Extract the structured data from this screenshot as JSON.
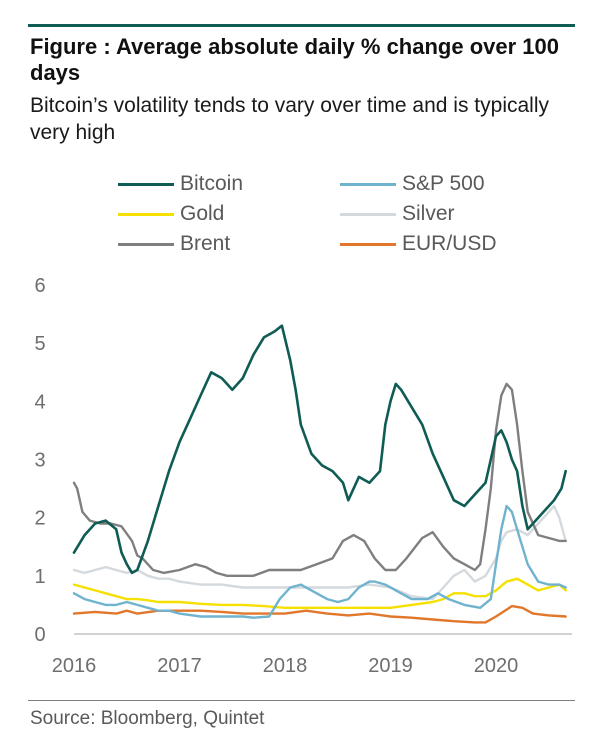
{
  "header": {
    "title": "Figure   : Average absolute daily % change over 100 days",
    "subtitle": "Bitcoin’s volatility tends to vary over time and is typically very high"
  },
  "footer": {
    "source": "Source: Bloomberg, Quintet"
  },
  "colors": {
    "rule": "#0f5c54"
  },
  "chart_data": {
    "type": "line",
    "title": "Figure   : Average absolute daily % change over 100 days",
    "subtitle": "Bitcoin’s volatility tends to vary over time and is typically very high",
    "xlabel": "",
    "ylabel": "",
    "xlim": [
      2016.0,
      2020.72
    ],
    "ylim": [
      0,
      6
    ],
    "x_ticks": [
      "2016",
      "2017",
      "2018",
      "2019",
      "2020"
    ],
    "y_ticks": [
      "0",
      "1",
      "2",
      "3",
      "4",
      "5",
      "6"
    ],
    "grid": false,
    "legend_placement": "top",
    "series": [
      {
        "name": "Bitcoin",
        "color": "#0f5c54",
        "points": [
          [
            2016.0,
            1.4
          ],
          [
            2016.1,
            1.7
          ],
          [
            2016.2,
            1.9
          ],
          [
            2016.3,
            1.95
          ],
          [
            2016.4,
            1.8
          ],
          [
            2016.45,
            1.4
          ],
          [
            2016.5,
            1.2
          ],
          [
            2016.55,
            1.05
          ],
          [
            2016.6,
            1.1
          ],
          [
            2016.7,
            1.6
          ],
          [
            2016.8,
            2.2
          ],
          [
            2016.9,
            2.8
          ],
          [
            2017.0,
            3.3
          ],
          [
            2017.1,
            3.7
          ],
          [
            2017.2,
            4.1
          ],
          [
            2017.3,
            4.5
          ],
          [
            2017.4,
            4.4
          ],
          [
            2017.5,
            4.2
          ],
          [
            2017.6,
            4.4
          ],
          [
            2017.7,
            4.8
          ],
          [
            2017.8,
            5.1
          ],
          [
            2017.9,
            5.2
          ],
          [
            2017.97,
            5.3
          ],
          [
            2018.05,
            4.7
          ],
          [
            2018.1,
            4.2
          ],
          [
            2018.15,
            3.6
          ],
          [
            2018.25,
            3.1
          ],
          [
            2018.35,
            2.9
          ],
          [
            2018.45,
            2.8
          ],
          [
            2018.55,
            2.6
          ],
          [
            2018.6,
            2.3
          ],
          [
            2018.7,
            2.7
          ],
          [
            2018.8,
            2.6
          ],
          [
            2018.9,
            2.8
          ],
          [
            2018.95,
            3.6
          ],
          [
            2019.0,
            4.0
          ],
          [
            2019.05,
            4.3
          ],
          [
            2019.1,
            4.2
          ],
          [
            2019.2,
            3.9
          ],
          [
            2019.3,
            3.6
          ],
          [
            2019.4,
            3.1
          ],
          [
            2019.5,
            2.7
          ],
          [
            2019.6,
            2.3
          ],
          [
            2019.7,
            2.2
          ],
          [
            2019.8,
            2.4
          ],
          [
            2019.9,
            2.6
          ],
          [
            2019.95,
            3.0
          ],
          [
            2020.0,
            3.4
          ],
          [
            2020.05,
            3.5
          ],
          [
            2020.1,
            3.3
          ],
          [
            2020.15,
            3.0
          ],
          [
            2020.2,
            2.8
          ],
          [
            2020.25,
            2.2
          ],
          [
            2020.3,
            1.8
          ],
          [
            2020.35,
            1.9
          ],
          [
            2020.45,
            2.1
          ],
          [
            2020.55,
            2.3
          ],
          [
            2020.62,
            2.5
          ],
          [
            2020.66,
            2.8
          ]
        ]
      },
      {
        "name": "S&P 500",
        "color": "#6fb3cf",
        "points": [
          [
            2016.0,
            0.7
          ],
          [
            2016.1,
            0.6
          ],
          [
            2016.2,
            0.55
          ],
          [
            2016.3,
            0.5
          ],
          [
            2016.4,
            0.5
          ],
          [
            2016.5,
            0.55
          ],
          [
            2016.6,
            0.5
          ],
          [
            2016.7,
            0.45
          ],
          [
            2016.8,
            0.4
          ],
          [
            2016.9,
            0.4
          ],
          [
            2017.0,
            0.35
          ],
          [
            2017.2,
            0.3
          ],
          [
            2017.4,
            0.3
          ],
          [
            2017.6,
            0.3
          ],
          [
            2017.7,
            0.28
          ],
          [
            2017.85,
            0.3
          ],
          [
            2017.95,
            0.6
          ],
          [
            2018.05,
            0.8
          ],
          [
            2018.15,
            0.85
          ],
          [
            2018.3,
            0.7
          ],
          [
            2018.4,
            0.6
          ],
          [
            2018.5,
            0.55
          ],
          [
            2018.6,
            0.6
          ],
          [
            2018.7,
            0.8
          ],
          [
            2018.8,
            0.9
          ],
          [
            2018.85,
            0.9
          ],
          [
            2018.95,
            0.85
          ],
          [
            2019.05,
            0.75
          ],
          [
            2019.2,
            0.6
          ],
          [
            2019.35,
            0.6
          ],
          [
            2019.45,
            0.7
          ],
          [
            2019.55,
            0.6
          ],
          [
            2019.7,
            0.5
          ],
          [
            2019.85,
            0.45
          ],
          [
            2019.95,
            0.6
          ],
          [
            2020.0,
            1.2
          ],
          [
            2020.05,
            1.8
          ],
          [
            2020.1,
            2.2
          ],
          [
            2020.15,
            2.1
          ],
          [
            2020.2,
            1.8
          ],
          [
            2020.3,
            1.2
          ],
          [
            2020.4,
            0.9
          ],
          [
            2020.5,
            0.85
          ],
          [
            2020.6,
            0.85
          ],
          [
            2020.66,
            0.8
          ]
        ]
      },
      {
        "name": "Gold",
        "color": "#f5e000",
        "points": [
          [
            2016.0,
            0.85
          ],
          [
            2016.1,
            0.8
          ],
          [
            2016.2,
            0.75
          ],
          [
            2016.3,
            0.7
          ],
          [
            2016.4,
            0.65
          ],
          [
            2016.5,
            0.6
          ],
          [
            2016.6,
            0.6
          ],
          [
            2016.7,
            0.58
          ],
          [
            2016.8,
            0.55
          ],
          [
            2016.9,
            0.55
          ],
          [
            2017.0,
            0.55
          ],
          [
            2017.2,
            0.52
          ],
          [
            2017.4,
            0.5
          ],
          [
            2017.6,
            0.5
          ],
          [
            2017.8,
            0.48
          ],
          [
            2018.0,
            0.45
          ],
          [
            2018.2,
            0.45
          ],
          [
            2018.4,
            0.45
          ],
          [
            2018.6,
            0.45
          ],
          [
            2018.8,
            0.45
          ],
          [
            2019.0,
            0.45
          ],
          [
            2019.2,
            0.5
          ],
          [
            2019.4,
            0.55
          ],
          [
            2019.5,
            0.6
          ],
          [
            2019.6,
            0.7
          ],
          [
            2019.7,
            0.7
          ],
          [
            2019.8,
            0.65
          ],
          [
            2019.9,
            0.65
          ],
          [
            2020.0,
            0.75
          ],
          [
            2020.1,
            0.9
          ],
          [
            2020.2,
            0.95
          ],
          [
            2020.3,
            0.85
          ],
          [
            2020.4,
            0.75
          ],
          [
            2020.5,
            0.8
          ],
          [
            2020.6,
            0.85
          ],
          [
            2020.66,
            0.75
          ]
        ]
      },
      {
        "name": "Silver",
        "color": "#d4d9dd",
        "points": [
          [
            2016.0,
            1.1
          ],
          [
            2016.1,
            1.05
          ],
          [
            2016.2,
            1.1
          ],
          [
            2016.3,
            1.15
          ],
          [
            2016.4,
            1.1
          ],
          [
            2016.5,
            1.05
          ],
          [
            2016.6,
            1.1
          ],
          [
            2016.7,
            1.0
          ],
          [
            2016.8,
            0.95
          ],
          [
            2016.9,
            0.95
          ],
          [
            2017.0,
            0.9
          ],
          [
            2017.2,
            0.85
          ],
          [
            2017.4,
            0.85
          ],
          [
            2017.6,
            0.8
          ],
          [
            2017.8,
            0.8
          ],
          [
            2018.0,
            0.8
          ],
          [
            2018.2,
            0.8
          ],
          [
            2018.4,
            0.8
          ],
          [
            2018.6,
            0.8
          ],
          [
            2018.8,
            0.85
          ],
          [
            2019.0,
            0.8
          ],
          [
            2019.2,
            0.65
          ],
          [
            2019.4,
            0.6
          ],
          [
            2019.5,
            0.8
          ],
          [
            2019.6,
            1.0
          ],
          [
            2019.7,
            1.1
          ],
          [
            2019.8,
            0.9
          ],
          [
            2019.9,
            1.0
          ],
          [
            2020.0,
            1.3
          ],
          [
            2020.05,
            1.6
          ],
          [
            2020.1,
            1.75
          ],
          [
            2020.2,
            1.8
          ],
          [
            2020.3,
            1.7
          ],
          [
            2020.4,
            1.9
          ],
          [
            2020.5,
            2.1
          ],
          [
            2020.55,
            2.2
          ],
          [
            2020.6,
            2.0
          ],
          [
            2020.66,
            1.6
          ]
        ]
      },
      {
        "name": "Brent",
        "color": "#7f7f7f",
        "points": [
          [
            2016.0,
            2.6
          ],
          [
            2016.03,
            2.5
          ],
          [
            2016.08,
            2.1
          ],
          [
            2016.15,
            1.95
          ],
          [
            2016.25,
            1.9
          ],
          [
            2016.35,
            1.9
          ],
          [
            2016.45,
            1.85
          ],
          [
            2016.55,
            1.6
          ],
          [
            2016.6,
            1.35
          ],
          [
            2016.65,
            1.3
          ],
          [
            2016.75,
            1.1
          ],
          [
            2016.85,
            1.05
          ],
          [
            2017.0,
            1.1
          ],
          [
            2017.15,
            1.2
          ],
          [
            2017.25,
            1.15
          ],
          [
            2017.35,
            1.05
          ],
          [
            2017.45,
            1.0
          ],
          [
            2017.55,
            1.0
          ],
          [
            2017.7,
            1.0
          ],
          [
            2017.85,
            1.1
          ],
          [
            2018.0,
            1.1
          ],
          [
            2018.15,
            1.1
          ],
          [
            2018.3,
            1.2
          ],
          [
            2018.45,
            1.3
          ],
          [
            2018.55,
            1.6
          ],
          [
            2018.65,
            1.7
          ],
          [
            2018.75,
            1.6
          ],
          [
            2018.85,
            1.3
          ],
          [
            2018.95,
            1.1
          ],
          [
            2019.05,
            1.1
          ],
          [
            2019.15,
            1.3
          ],
          [
            2019.3,
            1.65
          ],
          [
            2019.4,
            1.75
          ],
          [
            2019.5,
            1.5
          ],
          [
            2019.6,
            1.3
          ],
          [
            2019.7,
            1.2
          ],
          [
            2019.8,
            1.1
          ],
          [
            2019.85,
            1.2
          ],
          [
            2019.9,
            1.8
          ],
          [
            2019.95,
            2.5
          ],
          [
            2020.0,
            3.5
          ],
          [
            2020.05,
            4.1
          ],
          [
            2020.1,
            4.3
          ],
          [
            2020.15,
            4.2
          ],
          [
            2020.2,
            3.6
          ],
          [
            2020.25,
            2.8
          ],
          [
            2020.3,
            2.1
          ],
          [
            2020.4,
            1.7
          ],
          [
            2020.5,
            1.65
          ],
          [
            2020.6,
            1.6
          ],
          [
            2020.66,
            1.6
          ]
        ]
      },
      {
        "name": "EUR/USD",
        "color": "#e0772b",
        "points": [
          [
            2016.0,
            0.35
          ],
          [
            2016.2,
            0.38
          ],
          [
            2016.4,
            0.35
          ],
          [
            2016.5,
            0.4
          ],
          [
            2016.6,
            0.35
          ],
          [
            2016.8,
            0.4
          ],
          [
            2017.0,
            0.4
          ],
          [
            2017.2,
            0.4
          ],
          [
            2017.4,
            0.38
          ],
          [
            2017.6,
            0.35
          ],
          [
            2017.8,
            0.35
          ],
          [
            2018.0,
            0.35
          ],
          [
            2018.2,
            0.4
          ],
          [
            2018.4,
            0.35
          ],
          [
            2018.6,
            0.32
          ],
          [
            2018.8,
            0.35
          ],
          [
            2019.0,
            0.3
          ],
          [
            2019.2,
            0.28
          ],
          [
            2019.4,
            0.25
          ],
          [
            2019.6,
            0.22
          ],
          [
            2019.8,
            0.2
          ],
          [
            2019.9,
            0.2
          ],
          [
            2020.0,
            0.3
          ],
          [
            2020.1,
            0.42
          ],
          [
            2020.15,
            0.48
          ],
          [
            2020.25,
            0.45
          ],
          [
            2020.35,
            0.35
          ],
          [
            2020.5,
            0.32
          ],
          [
            2020.66,
            0.3
          ]
        ]
      }
    ]
  }
}
